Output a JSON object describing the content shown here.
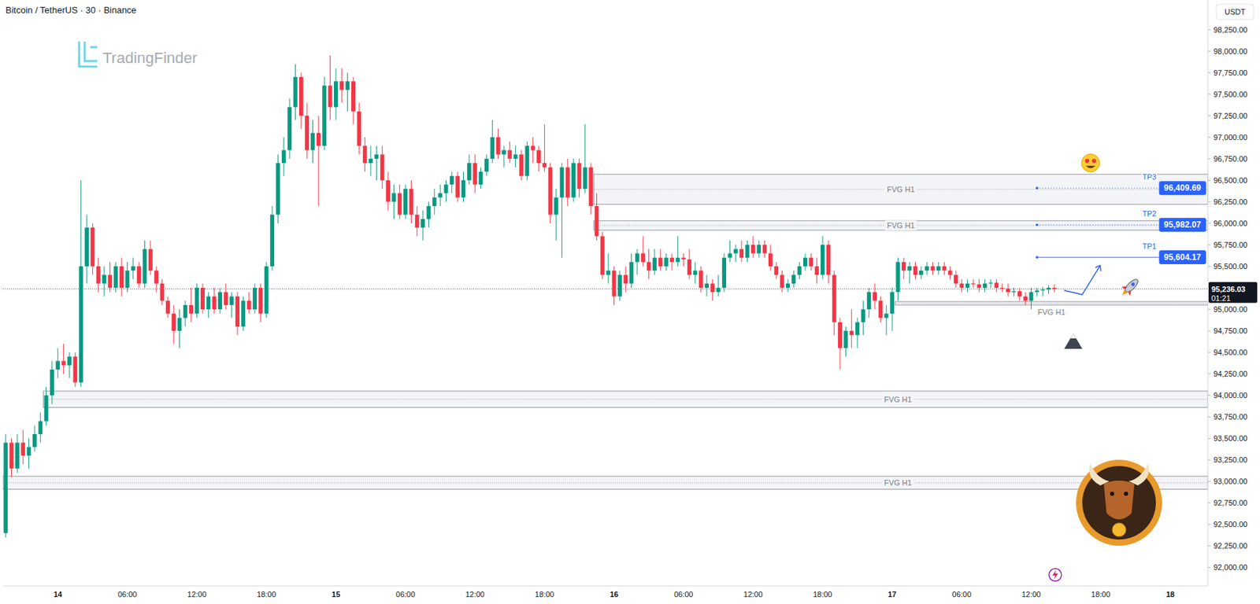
{
  "chart_data": {
    "type": "candlestick",
    "title": "Bitcoin / TetherUS · 30 · Binance",
    "watermark": "TradingFinder",
    "y_unit": "USDT",
    "categories": [
      null,
      null,
      null,
      null,
      null,
      null,
      null,
      null,
      null,
      "14",
      null,
      null,
      null,
      null,
      null,
      null,
      null,
      null,
      null,
      null,
      null,
      "06:00",
      null,
      null,
      null,
      null,
      null,
      null,
      null,
      null,
      null,
      null,
      null,
      "12:00",
      null,
      null,
      null,
      null,
      null,
      null,
      null,
      null,
      null,
      null,
      null,
      "18:00",
      null,
      null,
      null,
      null,
      null,
      null,
      null,
      null,
      null,
      null,
      null,
      "15",
      null,
      null,
      null,
      null,
      null,
      null,
      null,
      null,
      null,
      null,
      null,
      "06:00",
      null,
      null,
      null,
      null,
      null,
      null,
      null,
      null,
      null,
      null,
      null,
      "12:00",
      null,
      null,
      null,
      null,
      null,
      null,
      null,
      null,
      null,
      null,
      null,
      "18:00",
      null,
      null,
      null,
      null,
      null,
      null,
      null,
      null,
      null,
      null,
      null,
      "16",
      null,
      null,
      null,
      null,
      null,
      null,
      null,
      null,
      null,
      null,
      null,
      "06:00",
      null,
      null,
      null,
      null,
      null,
      null,
      null,
      null,
      null,
      null,
      null,
      "12:00",
      null,
      null,
      null,
      null,
      null,
      null,
      null,
      null,
      null,
      null,
      null,
      "18:00",
      null,
      null,
      null,
      null,
      null,
      null,
      null,
      null,
      null,
      null,
      null,
      "17",
      null,
      null,
      null,
      null,
      null,
      null,
      null,
      null,
      null,
      null,
      null,
      "06:00",
      null,
      null,
      null,
      null,
      null,
      null,
      null,
      null,
      null,
      null,
      null,
      "12:00",
      null,
      null,
      null,
      null,
      null,
      null,
      null,
      null,
      null,
      null,
      null,
      "18:00",
      null,
      null,
      null,
      null,
      null,
      null,
      null,
      null,
      null,
      null,
      null,
      "18",
      null,
      null,
      null,
      null,
      null,
      null
    ],
    "open": [
      92400,
      93450,
      93150,
      93450,
      93300,
      93400,
      93550,
      93700,
      94000,
      94300,
      94400,
      94350,
      94450,
      94150,
      95500,
      95950,
      95500,
      95300,
      95400,
      95250,
      95500,
      95250,
      95450,
      95500,
      95300,
      95700,
      95450,
      95300,
      95100,
      94950,
      94750,
      94900,
      95050,
      94950,
      95250,
      95000,
      95150,
      95000,
      95200,
      95050,
      95150,
      94800,
      95100,
      95000,
      95250,
      94950,
      95500,
      96100,
      96700,
      96850,
      97350,
      97700,
      97250,
      96850,
      97050,
      96900,
      97600,
      97350,
      97650,
      97550,
      97650,
      97300,
      96900,
      96700,
      96750,
      96800,
      96500,
      96250,
      96350,
      96100,
      96400,
      96100,
      95950,
      96050,
      96200,
      96300,
      96350,
      96450,
      96550,
      96300,
      96500,
      96700,
      96450,
      96600,
      96750,
      97000,
      96800,
      96850,
      96750,
      96800,
      96550,
      96900,
      96850,
      96700,
      96650,
      96100,
      96300,
      96650,
      96300,
      96700,
      96400,
      96650,
      96200,
      95850,
      95400,
      95450,
      95150,
      95400,
      95300,
      95550,
      95650,
      95550,
      95450,
      95600,
      95500,
      95600,
      95550,
      95600,
      95580,
      95400,
      95450,
      95250,
      95300,
      95200,
      95250,
      95600,
      95650,
      95700,
      95600,
      95750,
      95650,
      95750,
      95650,
      95500,
      95400,
      95250,
      95300,
      95400,
      95500,
      95600,
      95500,
      95400,
      95750,
      95400,
      94850,
      94550,
      94750,
      94700,
      94850,
      95000,
      95200,
      95100,
      94900,
      94950,
      95200,
      95550,
      95450,
      95500,
      95400,
      95450,
      95500,
      95450,
      95500,
      95450,
      95400,
      95300,
      95250,
      95300,
      95290,
      95250,
      95300,
      95310,
      95250,
      95240,
      95200,
      95210,
      95150,
      95100,
      95200,
      95220,
      95230,
      95250,
      null,
      null,
      null,
      null,
      null,
      null,
      null,
      null,
      null,
      null,
      null,
      null,
      null,
      null,
      null,
      null,
      null,
      null,
      null,
      null,
      null,
      null,
      null,
      null,
      null,
      null
    ],
    "high": [
      93550,
      93500,
      93550,
      93600,
      93500,
      93650,
      93800,
      94100,
      94400,
      94550,
      94600,
      94500,
      94500,
      96500,
      96100,
      96000,
      95600,
      95500,
      95550,
      95550,
      95600,
      95550,
      95600,
      95550,
      95800,
      95800,
      95500,
      95350,
      95150,
      95050,
      95000,
      95100,
      95250,
      95300,
      95300,
      95200,
      95250,
      95250,
      95300,
      95200,
      95200,
      95150,
      95200,
      95300,
      95300,
      95550,
      96200,
      96800,
      97000,
      97450,
      97850,
      97750,
      97400,
      97200,
      97250,
      97700,
      97950,
      97800,
      97800,
      97750,
      97700,
      97400,
      97000,
      96900,
      96900,
      96900,
      96600,
      96450,
      96450,
      96450,
      96500,
      96200,
      96150,
      96250,
      96400,
      96450,
      96500,
      96600,
      96600,
      96600,
      96800,
      96800,
      96650,
      96800,
      97200,
      97100,
      96900,
      96950,
      96900,
      96850,
      96950,
      97000,
      96900,
      97150,
      96700,
      96400,
      96700,
      96750,
      96750,
      96750,
      97150,
      96700,
      96350,
      95900,
      95650,
      95500,
      95450,
      95500,
      95650,
      95700,
      95850,
      95700,
      95700,
      95700,
      95650,
      95650,
      95850,
      95650,
      95700,
      95550,
      95500,
      95400,
      95350,
      95400,
      95650,
      95800,
      95750,
      95800,
      95800,
      95850,
      95800,
      95800,
      95750,
      95550,
      95450,
      95350,
      95450,
      95550,
      95650,
      95650,
      95600,
      95850,
      95800,
      95450,
      94900,
      94800,
      95000,
      94900,
      95100,
      95250,
      95300,
      95150,
      95050,
      95250,
      95600,
      95600,
      95550,
      95550,
      95500,
      95550,
      95550,
      95550,
      95550,
      95500,
      95450,
      95350,
      95350,
      95350,
      95350,
      95350,
      95350,
      95350,
      95300,
      95300,
      95250,
      95250,
      95200,
      95250,
      95250,
      95260,
      95280,
      95290,
      null,
      null,
      null,
      null,
      null,
      null,
      null,
      null,
      null,
      null,
      null,
      null,
      null,
      null,
      null,
      null,
      null,
      null,
      null,
      null,
      null,
      null,
      null,
      null,
      null,
      null
    ],
    "low": [
      92350,
      93050,
      93100,
      93200,
      93150,
      93350,
      93450,
      93650,
      93900,
      94200,
      94250,
      94200,
      94100,
      94100,
      95300,
      95400,
      95200,
      95150,
      95200,
      95200,
      95150,
      95200,
      95350,
      95250,
      95250,
      95400,
      95200,
      95050,
      94900,
      94600,
      94550,
      94800,
      94850,
      94900,
      94950,
      94900,
      94950,
      94950,
      95000,
      94900,
      94700,
      94750,
      94950,
      94950,
      94850,
      94900,
      95450,
      96000,
      96550,
      96750,
      97200,
      97100,
      96750,
      96700,
      96200,
      96850,
      97200,
      97200,
      97400,
      97300,
      97150,
      96800,
      96600,
      96550,
      96500,
      96400,
      96150,
      96050,
      96050,
      96050,
      96000,
      95850,
      95800,
      95950,
      96100,
      96200,
      96250,
      96350,
      96250,
      96250,
      96450,
      96350,
      96400,
      96550,
      96700,
      96750,
      96650,
      96700,
      96650,
      96500,
      96500,
      96700,
      96600,
      96600,
      96000,
      95800,
      95600,
      96200,
      96250,
      96300,
      96350,
      96100,
      95800,
      95350,
      95300,
      95050,
      95100,
      95200,
      95250,
      95400,
      95500,
      95350,
      95400,
      95450,
      95450,
      95450,
      95500,
      95500,
      95350,
      95300,
      95200,
      95150,
      95100,
      95150,
      95200,
      95550,
      95550,
      95550,
      95550,
      95600,
      95600,
      95600,
      95450,
      95350,
      95200,
      95200,
      95250,
      95350,
      95450,
      95450,
      95300,
      95350,
      95300,
      94700,
      94300,
      94450,
      94550,
      94550,
      94700,
      94900,
      95000,
      94850,
      94700,
      94750,
      95100,
      95350,
      95300,
      95350,
      95350,
      95400,
      95400,
      95400,
      95400,
      95350,
      95250,
      95200,
      95200,
      95250,
      95200,
      95200,
      95250,
      95200,
      95200,
      95150,
      95150,
      95100,
      95050,
      95000,
      95150,
      95150,
      95180,
      95200,
      null,
      null,
      null,
      null,
      null,
      null,
      null,
      null,
      null,
      null,
      null,
      null,
      null,
      null,
      null,
      null,
      null,
      null,
      null,
      null,
      null,
      null,
      null,
      null,
      null,
      null
    ],
    "close": [
      93450,
      93150,
      93450,
      93300,
      93400,
      93550,
      93700,
      94000,
      94300,
      94400,
      94350,
      94450,
      94150,
      95500,
      95950,
      95500,
      95300,
      95400,
      95250,
      95500,
      95250,
      95450,
      95500,
      95300,
      95700,
      95450,
      95300,
      95100,
      94950,
      94750,
      94900,
      95050,
      94950,
      95250,
      95000,
      95150,
      95000,
      95200,
      95050,
      95150,
      94800,
      95100,
      95000,
      95250,
      94950,
      95500,
      96100,
      96700,
      96850,
      97350,
      97700,
      97250,
      96850,
      97050,
      96900,
      97600,
      97350,
      97650,
      97550,
      97650,
      97300,
      96900,
      96700,
      96750,
      96800,
      96500,
      96250,
      96350,
      96100,
      96400,
      96100,
      95950,
      96050,
      96200,
      96300,
      96350,
      96450,
      96550,
      96300,
      96500,
      96700,
      96450,
      96600,
      96750,
      97000,
      96800,
      96850,
      96750,
      96800,
      96550,
      96900,
      96850,
      96700,
      96650,
      96100,
      96300,
      96650,
      96300,
      96700,
      96400,
      96650,
      96200,
      95850,
      95400,
      95450,
      95150,
      95400,
      95300,
      95550,
      95650,
      95550,
      95450,
      95600,
      95500,
      95600,
      95550,
      95600,
      95580,
      95400,
      95450,
      95250,
      95300,
      95200,
      95250,
      95600,
      95650,
      95700,
      95600,
      95750,
      95650,
      95750,
      95650,
      95500,
      95400,
      95250,
      95300,
      95400,
      95500,
      95600,
      95500,
      95400,
      95750,
      95400,
      94850,
      94550,
      94750,
      94700,
      94850,
      95000,
      95200,
      95100,
      94900,
      94950,
      95200,
      95550,
      95450,
      95500,
      95400,
      95450,
      95500,
      95450,
      95500,
      95450,
      95400,
      95300,
      95250,
      95300,
      95290,
      95250,
      95300,
      95310,
      95250,
      95240,
      95200,
      95210,
      95150,
      95100,
      95200,
      95220,
      95230,
      95250,
      95236.03,
      null,
      null,
      null,
      null,
      null,
      null,
      null,
      null,
      null,
      null,
      null,
      null,
      null,
      null,
      null,
      null,
      null,
      null,
      null,
      null,
      null,
      null,
      null,
      null,
      null,
      null
    ],
    "ylim": [
      91785,
      98595
    ],
    "yticks": [
      {
        "value": 92000,
        "label": "92,000.00"
      },
      {
        "value": 92250,
        "label": "92,250.00"
      },
      {
        "value": 92500,
        "label": "92,500.00"
      },
      {
        "value": 92750,
        "label": "92,750.00"
      },
      {
        "value": 93000,
        "label": "93,000.00"
      },
      {
        "value": 93250,
        "label": "93,250.00"
      },
      {
        "value": 93500,
        "label": "93,500.00"
      },
      {
        "value": 93750,
        "label": "93,750.00"
      },
      {
        "value": 94000,
        "label": "94,000.00"
      },
      {
        "value": 94250,
        "label": "94,250.00"
      },
      {
        "value": 94500,
        "label": "94,500.00"
      },
      {
        "value": 94750,
        "label": "94,750.00"
      },
      {
        "value": 95000,
        "label": "95,000.00"
      },
      {
        "value": 95500,
        "label": "95,500.00"
      },
      {
        "value": 95750,
        "label": "95,750.00"
      },
      {
        "value": 96000,
        "label": "96,000.00"
      },
      {
        "value": 96250,
        "label": "96,250.00"
      },
      {
        "value": 96500,
        "label": "96,500.00"
      },
      {
        "value": 96750,
        "label": "96,750.00"
      },
      {
        "value": 97000,
        "label": "97,000.00"
      },
      {
        "value": 97250,
        "label": "97,250.00"
      },
      {
        "value": 97500,
        "label": "97,500.00"
      },
      {
        "value": 97750,
        "label": "97,750.00"
      },
      {
        "value": 98000,
        "label": "98,000.00"
      },
      {
        "value": 98250,
        "label": "98,250.00"
      }
    ],
    "grid": false,
    "last_price": {
      "value": 95236.03,
      "label": "95,236.03",
      "countdown": "01:21"
    },
    "zones": [
      {
        "label": "FVG H1",
        "low": 96220,
        "high": 96570,
        "start": 102
      },
      {
        "label": "FVG H1",
        "low": 95920,
        "high": 96030,
        "start": 102
      },
      {
        "label": "FVG H1",
        "low": 95050,
        "high": 95090,
        "start": 154
      },
      {
        "label": "FVG H1",
        "low": 93860,
        "high": 94050,
        "start": 7
      },
      {
        "label": "FVG H1",
        "low": 92910,
        "high": 93060,
        "start": 0
      }
    ],
    "targets": [
      {
        "name": "TP1",
        "value": 95604.17,
        "label": "95,604.17",
        "start": 178,
        "line_style": "solid"
      },
      {
        "name": "TP2",
        "value": 95982.07,
        "label": "95,982.07",
        "start": 178,
        "line_style": "dotted"
      },
      {
        "name": "TP3",
        "value": 96409.69,
        "label": "96,409.69",
        "start": 178,
        "line_style": "dotted"
      }
    ]
  }
}
